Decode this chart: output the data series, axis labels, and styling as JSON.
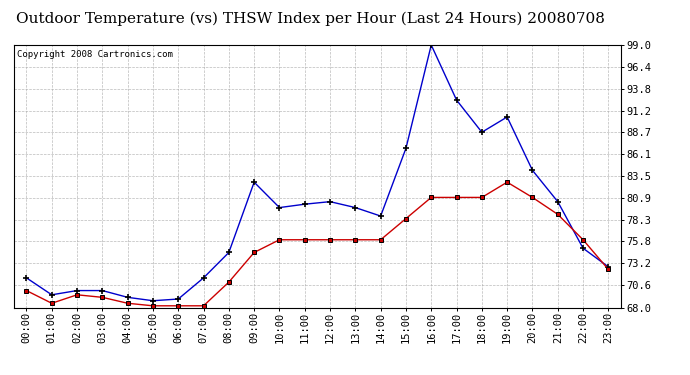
{
  "title": "Outdoor Temperature (vs) THSW Index per Hour (Last 24 Hours) 20080708",
  "copyright": "Copyright 2008 Cartronics.com",
  "hours": [
    "00:00",
    "01:00",
    "02:00",
    "03:00",
    "04:00",
    "05:00",
    "06:00",
    "07:00",
    "08:00",
    "09:00",
    "10:00",
    "11:00",
    "12:00",
    "13:00",
    "14:00",
    "15:00",
    "16:00",
    "17:00",
    "18:00",
    "19:00",
    "20:00",
    "21:00",
    "22:00",
    "23:00"
  ],
  "blue_data": [
    71.5,
    69.5,
    70.0,
    70.0,
    69.2,
    68.8,
    69.0,
    71.5,
    74.5,
    82.8,
    79.8,
    80.2,
    80.5,
    79.8,
    78.8,
    86.8,
    99.0,
    92.5,
    88.7,
    90.5,
    84.2,
    80.5,
    75.0,
    72.8
  ],
  "red_data": [
    70.0,
    68.5,
    69.5,
    69.2,
    68.5,
    68.2,
    68.2,
    68.2,
    71.0,
    74.5,
    76.0,
    76.0,
    76.0,
    76.0,
    76.0,
    78.5,
    81.0,
    81.0,
    81.0,
    82.8,
    81.0,
    79.0,
    76.0,
    72.5
  ],
  "blue_color": "#0000cc",
  "red_color": "#cc0000",
  "bg_color": "#ffffff",
  "grid_color": "#aaaaaa",
  "ylim_min": 68.0,
  "ylim_max": 99.0,
  "yticks": [
    68.0,
    70.6,
    73.2,
    75.8,
    78.3,
    80.9,
    83.5,
    86.1,
    88.7,
    91.2,
    93.8,
    96.4,
    99.0
  ],
  "title_fontsize": 11,
  "axis_fontsize": 7.5,
  "copyright_fontsize": 6.5
}
